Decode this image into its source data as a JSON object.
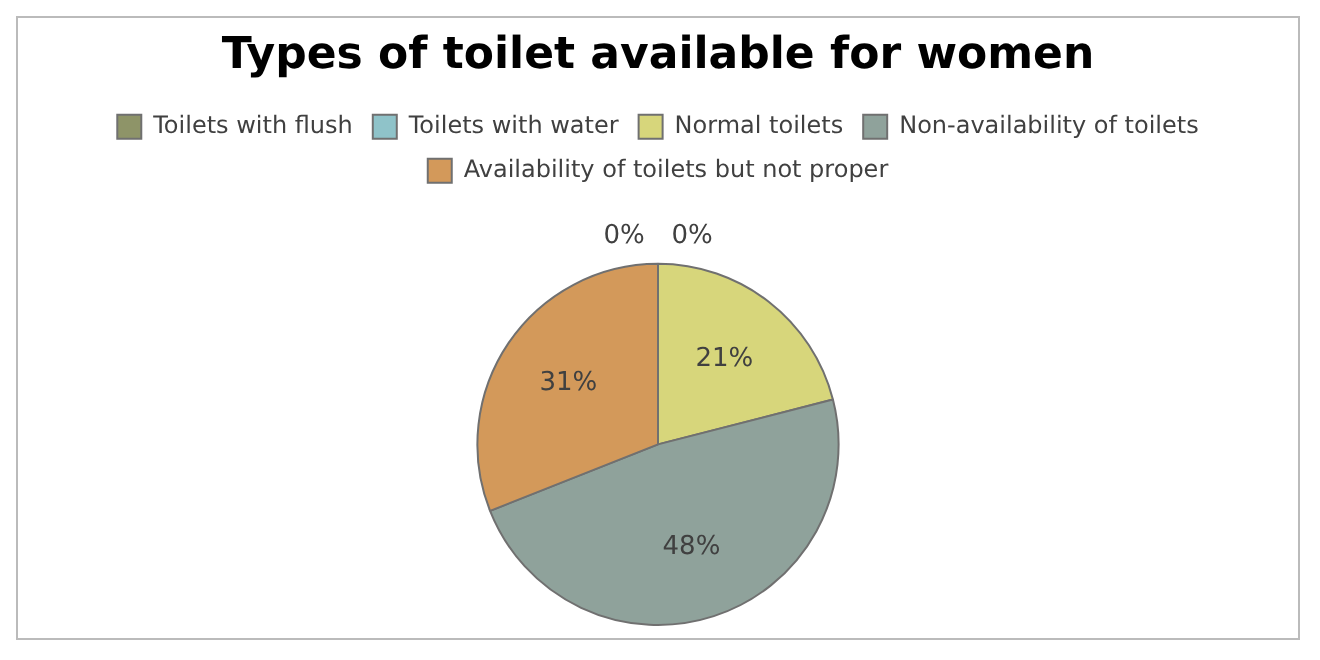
{
  "chart_data": {
    "type": "pie",
    "title": "Types of toilet available for women",
    "categories": [
      "Toilets with flush",
      "Toilets with water",
      "Normal toilets",
      "Non-availability of toilets",
      "Availability of toilets but not proper"
    ],
    "values": [
      0,
      0,
      21,
      48,
      31
    ],
    "colors": [
      "#8e9468",
      "#8fc3c9",
      "#d7d67b",
      "#8fa29b",
      "#d3995a"
    ],
    "value_labels": [
      "0%",
      "0%",
      "21%",
      "48%",
      "31%"
    ],
    "legend": "top"
  }
}
